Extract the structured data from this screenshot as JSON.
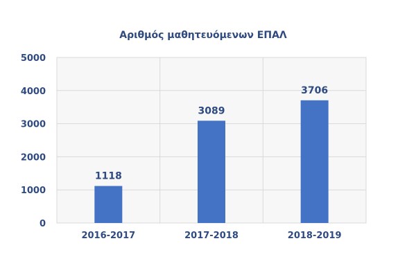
{
  "chart_data": {
    "type": "bar",
    "title": "Αριθμός μαθητευόμενων ΕΠΑΛ",
    "categories": [
      "2016-2017",
      "2017-2018",
      "2018-2019"
    ],
    "values": [
      1118,
      3089,
      3706
    ],
    "data_labels": [
      "1118",
      "3089",
      "3706"
    ],
    "xlabel": "",
    "ylabel": "",
    "ylim": [
      0,
      5000
    ],
    "yticks": [
      0,
      1000,
      2000,
      3000,
      4000,
      5000
    ],
    "ytick_labels": [
      "0",
      "1000",
      "2000",
      "3000",
      "4000",
      "5000"
    ],
    "grid": true,
    "legend": "none",
    "colors": {
      "bar": "#4472c4",
      "text": "#2e4a80",
      "grid": "#d9d9d9",
      "plot_bg": "#f7f7f7"
    }
  }
}
